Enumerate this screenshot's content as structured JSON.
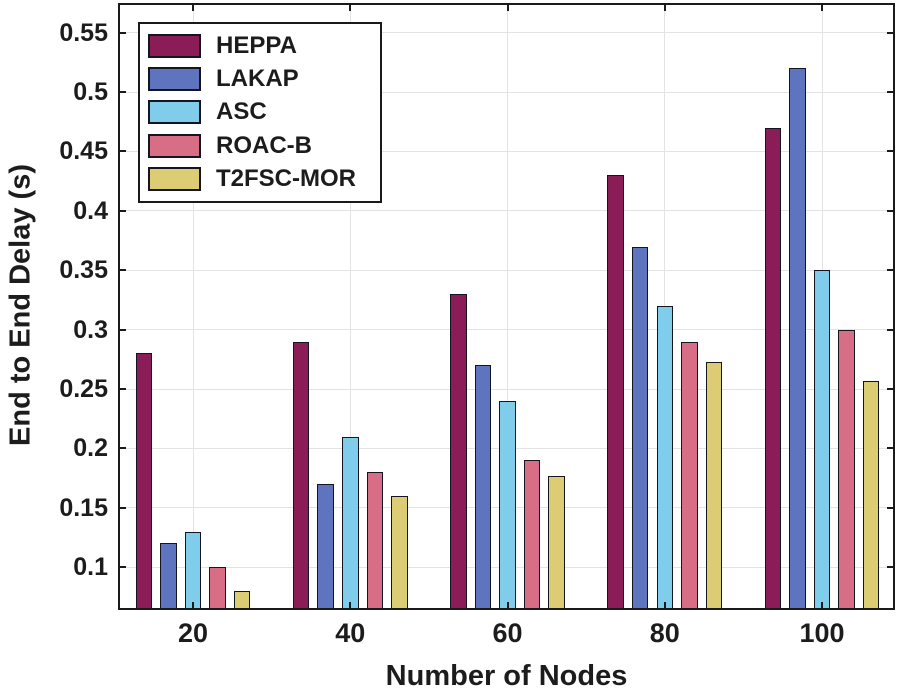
{
  "chart_data": {
    "type": "bar",
    "title": "",
    "xlabel": "Number of Nodes",
    "ylabel": "End to End Delay (s)",
    "categories": [
      20,
      40,
      60,
      80,
      100
    ],
    "series": [
      {
        "name": "HEPPA",
        "color": "#8A1D57",
        "values": [
          0.28,
          0.29,
          0.33,
          0.43,
          0.47
        ]
      },
      {
        "name": "LAKAP",
        "color": "#5E74BE",
        "values": [
          0.12,
          0.17,
          0.27,
          0.37,
          0.52
        ]
      },
      {
        "name": "ASC",
        "color": "#80CDEB",
        "values": [
          0.13,
          0.21,
          0.24,
          0.32,
          0.35
        ]
      },
      {
        "name": "ROAC-B",
        "color": "#D76E86",
        "values": [
          0.1,
          0.18,
          0.19,
          0.29,
          0.3
        ]
      },
      {
        "name": "T2FSC-MOR",
        "color": "#DCCC74",
        "values": [
          0.08,
          0.16,
          0.177,
          0.273,
          0.257
        ]
      }
    ],
    "y_ticks": [
      0.1,
      0.15,
      0.2,
      0.25,
      0.3,
      0.35,
      0.4,
      0.45,
      0.5,
      0.55
    ],
    "ylim": [
      0.064,
      0.575
    ],
    "grid": true,
    "legend_position": "top-left",
    "styles": {
      "background": "#ffffff",
      "grid_color": "#e3e3e3",
      "axis_color": "#1a1a1a",
      "text_color": "#1c1c1c",
      "bar_edge_color": "#15151f"
    }
  }
}
